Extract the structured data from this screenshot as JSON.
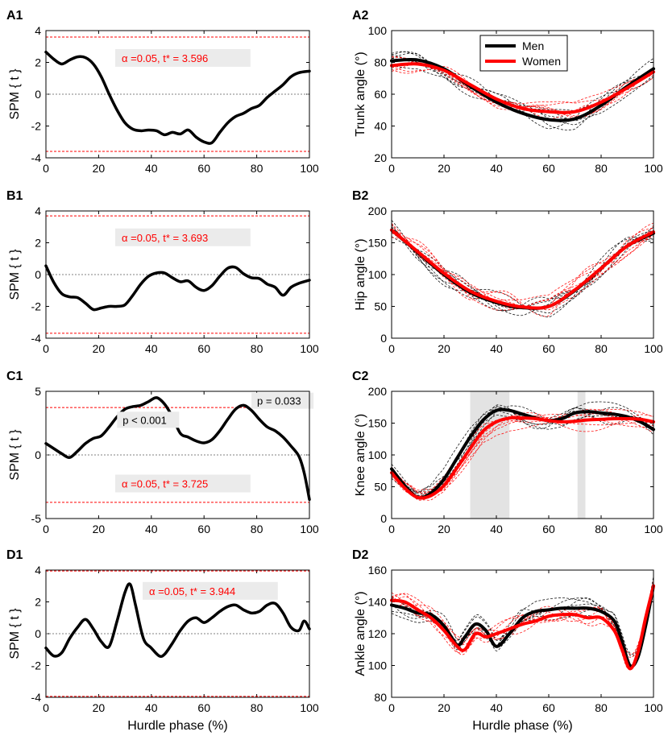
{
  "colors": {
    "men": "#000000",
    "women": "#ff0000",
    "threshold": "#ff0000",
    "zero": "#808080",
    "shade": "#e3e3e3",
    "annot_bg": "#ebebeb"
  },
  "legend": {
    "men": "Men",
    "women": "Women"
  },
  "chart_data": [
    {
      "id": "A1",
      "type": "line",
      "panel_label": "A1",
      "xlabel": "",
      "ylabel": "SPM { t }",
      "xlim": [
        0,
        100
      ],
      "ylim": [
        -4,
        4
      ],
      "xticks": [
        "0",
        "20",
        "40",
        "60",
        "80",
        "100"
      ],
      "yticks": [
        "-4",
        "-2",
        "0",
        "2",
        "4"
      ],
      "threshold": 3.596,
      "threshold_label": "α =0.05,     t* = 3.596",
      "series": [
        {
          "name": "SPM{t}",
          "x": [
            0,
            3,
            6,
            9,
            12,
            15,
            18,
            21,
            24,
            27,
            30,
            33,
            36,
            39,
            42,
            45,
            48,
            51,
            54,
            57,
            60,
            63,
            66,
            69,
            72,
            75,
            78,
            81,
            84,
            87,
            90,
            93,
            96,
            100
          ],
          "y": [
            2.65,
            2.2,
            1.9,
            2.15,
            2.35,
            2.3,
            1.9,
            1.1,
            0,
            -1,
            -1.8,
            -2.2,
            -2.3,
            -2.25,
            -2.3,
            -2.55,
            -2.4,
            -2.5,
            -2.25,
            -2.7,
            -3.0,
            -3.05,
            -2.4,
            -1.8,
            -1.4,
            -1.2,
            -0.9,
            -0.7,
            -0.2,
            0.2,
            0.6,
            1.1,
            1.35,
            1.45
          ]
        }
      ]
    },
    {
      "id": "A2",
      "type": "line",
      "panel_label": "A2",
      "xlabel": "",
      "ylabel": "Trunk angle (°)",
      "xlim": [
        0,
        100
      ],
      "ylim": [
        20,
        100
      ],
      "xticks": [
        "0",
        "20",
        "40",
        "60",
        "80",
        "100"
      ],
      "yticks": [
        "20",
        "40",
        "60",
        "80",
        "100"
      ],
      "legend_position": "top-center",
      "series": [
        {
          "name": "Men",
          "x": [
            0,
            10,
            20,
            30,
            40,
            50,
            60,
            70,
            80,
            90,
            100
          ],
          "y": [
            81,
            81.5,
            76,
            65,
            55,
            48,
            44,
            44.5,
            53,
            65,
            76
          ]
        },
        {
          "name": "Women",
          "x": [
            0,
            10,
            20,
            30,
            40,
            50,
            60,
            70,
            80,
            90,
            100
          ],
          "y": [
            78,
            79,
            75,
            66,
            57,
            51,
            49,
            49,
            55,
            64,
            74
          ]
        }
      ]
    },
    {
      "id": "B1",
      "type": "line",
      "panel_label": "B1",
      "xlabel": "",
      "ylabel": "SPM { t }",
      "xlim": [
        0,
        100
      ],
      "ylim": [
        -4,
        4
      ],
      "xticks": [
        "0",
        "20",
        "40",
        "60",
        "80",
        "100"
      ],
      "yticks": [
        "-4",
        "-2",
        "0",
        "2",
        "4"
      ],
      "threshold": 3.693,
      "threshold_label": "α =0.05,     t* = 3.693",
      "series": [
        {
          "name": "SPM{t}",
          "x": [
            0,
            3,
            6,
            9,
            12,
            15,
            18,
            21,
            24,
            27,
            30,
            33,
            36,
            39,
            42,
            45,
            48,
            51,
            54,
            57,
            60,
            63,
            66,
            69,
            72,
            75,
            78,
            81,
            84,
            87,
            90,
            93,
            96,
            100
          ],
          "y": [
            0.55,
            -0.5,
            -1.2,
            -1.4,
            -1.45,
            -1.8,
            -2.2,
            -2.1,
            -2.0,
            -2.0,
            -1.9,
            -1.3,
            -0.6,
            -0.1,
            0.1,
            0.1,
            -0.2,
            -0.45,
            -0.4,
            -0.8,
            -1.0,
            -0.7,
            -0.1,
            0.4,
            0.45,
            0.05,
            -0.2,
            -0.25,
            -0.6,
            -0.8,
            -1.3,
            -0.8,
            -0.55,
            -0.35
          ]
        }
      ]
    },
    {
      "id": "B2",
      "type": "line",
      "panel_label": "B2",
      "xlabel": "",
      "ylabel": "Hip angle (°)",
      "xlim": [
        0,
        100
      ],
      "ylim": [
        0,
        200
      ],
      "xticks": [
        "0",
        "20",
        "40",
        "60",
        "80",
        "100"
      ],
      "yticks": [
        "0",
        "50",
        "100",
        "150",
        "200"
      ],
      "series": [
        {
          "name": "Men",
          "x": [
            0,
            10,
            20,
            30,
            40,
            50,
            60,
            70,
            80,
            90,
            100
          ],
          "y": [
            170,
            135,
            100,
            72,
            56,
            48,
            50,
            75,
            110,
            145,
            165
          ]
        },
        {
          "name": "Women",
          "x": [
            0,
            10,
            20,
            30,
            40,
            50,
            60,
            70,
            80,
            90,
            100
          ],
          "y": [
            170,
            136,
            102,
            74,
            58,
            49,
            50,
            76,
            110,
            145,
            167
          ]
        }
      ]
    },
    {
      "id": "C1",
      "type": "line",
      "panel_label": "C1",
      "xlabel": "",
      "ylabel": "SPM { t }",
      "xlim": [
        0,
        100
      ],
      "ylim": [
        -5,
        5
      ],
      "xticks": [
        "0",
        "20",
        "40",
        "60",
        "80",
        "100"
      ],
      "yticks": [
        "-5",
        "0",
        "5"
      ],
      "threshold": 3.725,
      "threshold_label": "α =0.05,     t* = 3.725",
      "clusters": [
        {
          "label": "p < 0.001",
          "x": [
            30,
            45
          ]
        },
        {
          "label": "p = 0.033",
          "x": [
            71,
            74
          ]
        }
      ],
      "series": [
        {
          "name": "SPM{t}",
          "x": [
            0,
            3,
            6,
            9,
            12,
            15,
            18,
            21,
            24,
            27,
            30,
            33,
            36,
            39,
            42,
            45,
            48,
            51,
            54,
            57,
            60,
            63,
            66,
            69,
            72,
            75,
            78,
            81,
            84,
            87,
            90,
            93,
            96,
            98,
            100
          ],
          "y": [
            0.9,
            0.5,
            0.1,
            -0.2,
            0.3,
            0.9,
            1.3,
            1.5,
            2.2,
            3.0,
            3.6,
            3.8,
            3.9,
            4.2,
            4.5,
            4.0,
            3.0,
            1.7,
            1.4,
            1.1,
            0.95,
            1.2,
            1.9,
            2.8,
            3.6,
            3.9,
            3.5,
            2.8,
            2.2,
            1.9,
            1.4,
            0.7,
            -0.1,
            -1.4,
            -3.5
          ]
        }
      ]
    },
    {
      "id": "C2",
      "type": "line",
      "panel_label": "C2",
      "xlabel": "",
      "ylabel": "Knee angle (°)",
      "xlim": [
        0,
        100
      ],
      "ylim": [
        0,
        200
      ],
      "xticks": [
        "0",
        "20",
        "40",
        "60",
        "80",
        "100"
      ],
      "yticks": [
        "0",
        "50",
        "100",
        "150",
        "200"
      ],
      "shaded_regions": [
        [
          30,
          45
        ],
        [
          71,
          74
        ]
      ],
      "series": [
        {
          "name": "Men",
          "x": [
            0,
            5,
            10,
            15,
            20,
            25,
            30,
            35,
            40,
            45,
            50,
            55,
            60,
            65,
            70,
            75,
            80,
            85,
            90,
            95,
            100
          ],
          "y": [
            78,
            52,
            33,
            40,
            62,
            95,
            128,
            155,
            170,
            170,
            164,
            158,
            154,
            157,
            166,
            168,
            166,
            164,
            160,
            152,
            140
          ]
        },
        {
          "name": "Women",
          "x": [
            0,
            5,
            10,
            15,
            20,
            25,
            30,
            35,
            40,
            45,
            50,
            55,
            60,
            65,
            70,
            75,
            80,
            85,
            90,
            95,
            100
          ],
          "y": [
            72,
            48,
            33,
            36,
            52,
            80,
            110,
            138,
            152,
            158,
            158,
            157,
            154,
            152,
            153,
            155,
            156,
            157,
            157,
            156,
            152
          ]
        }
      ]
    },
    {
      "id": "D1",
      "type": "line",
      "panel_label": "D1",
      "xlabel": "Hurdle phase (%)",
      "ylabel": "SPM { t }",
      "xlim": [
        0,
        100
      ],
      "ylim": [
        -4,
        4
      ],
      "xticks": [
        "0",
        "20",
        "40",
        "60",
        "80",
        "100"
      ],
      "yticks": [
        "-4",
        "-2",
        "0",
        "2",
        "4"
      ],
      "threshold": 3.944,
      "threshold_label": "α =0.05,     t* = 3.944",
      "series": [
        {
          "name": "SPM{t}",
          "x": [
            0,
            3,
            6,
            9,
            12,
            15,
            18,
            21,
            24,
            27,
            30,
            32,
            34,
            37,
            40,
            43,
            45,
            48,
            51,
            54,
            57,
            60,
            63,
            66,
            69,
            72,
            75,
            78,
            81,
            84,
            87,
            90,
            93,
            96,
            98,
            100
          ],
          "y": [
            -0.9,
            -1.4,
            -1.2,
            -0.3,
            0.4,
            0.9,
            0.3,
            -0.5,
            -0.8,
            0.8,
            2.6,
            3.1,
            1.8,
            -0.3,
            -0.9,
            -1.4,
            -1.3,
            -0.6,
            0.2,
            0.8,
            1.0,
            0.7,
            1.0,
            1.4,
            1.7,
            1.8,
            1.5,
            1.3,
            1.4,
            1.8,
            1.9,
            1.3,
            0.4,
            0.2,
            0.8,
            0.3
          ]
        }
      ]
    },
    {
      "id": "D2",
      "type": "line",
      "panel_label": "D2",
      "xlabel": "Hurdle phase (%)",
      "ylabel": "Ankle angle (°)",
      "xlim": [
        0,
        100
      ],
      "ylim": [
        80,
        160
      ],
      "xticks": [
        "0",
        "20",
        "40",
        "60",
        "80",
        "100"
      ],
      "yticks": [
        "80",
        "100",
        "120",
        "140",
        "160"
      ],
      "series": [
        {
          "name": "Men",
          "x": [
            0,
            5,
            10,
            15,
            20,
            25,
            28,
            32,
            36,
            40,
            45,
            50,
            55,
            60,
            65,
            70,
            75,
            80,
            85,
            88,
            91,
            94,
            97,
            100
          ],
          "y": [
            138,
            136,
            133,
            132,
            125,
            113,
            118,
            126,
            122,
            112,
            120,
            130,
            134,
            135,
            136,
            136,
            136,
            134,
            128,
            115,
            100,
            105,
            125,
            150
          ]
        },
        {
          "name": "Women",
          "x": [
            0,
            5,
            10,
            15,
            20,
            25,
            28,
            32,
            36,
            40,
            45,
            50,
            55,
            60,
            65,
            70,
            75,
            80,
            85,
            88,
            91,
            94,
            97,
            100
          ],
          "y": [
            141,
            140,
            135,
            130,
            122,
            112,
            110,
            120,
            118,
            120,
            123,
            126,
            128,
            131,
            132,
            132,
            130,
            130,
            122,
            110,
            98,
            108,
            130,
            150
          ]
        }
      ]
    }
  ]
}
